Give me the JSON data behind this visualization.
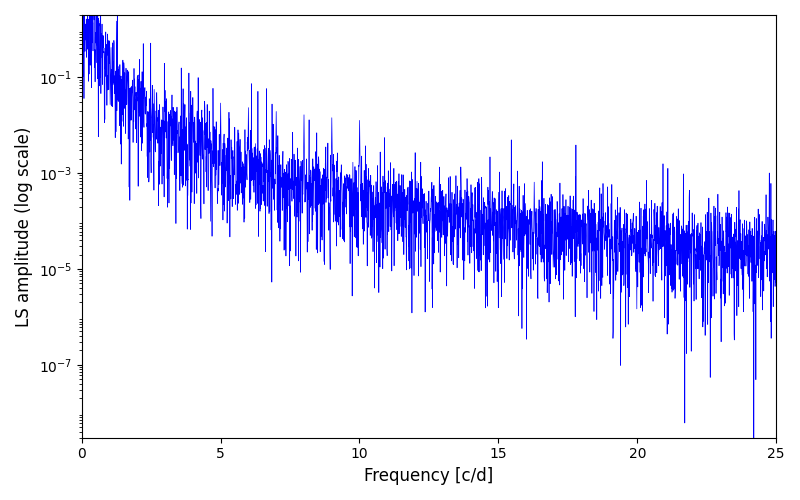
{
  "title": "",
  "xlabel": "Frequency [c/d]",
  "ylabel": "LS amplitude (log scale)",
  "xlim": [
    0,
    25
  ],
  "ylim": [
    3e-09,
    2.0
  ],
  "yscale": "log",
  "line_color": "#0000ff",
  "line_width": 0.5,
  "background_color": "#ffffff",
  "figsize": [
    8.0,
    5.0
  ],
  "dpi": 100,
  "n_points": 3000,
  "freq_max": 25.0,
  "seed": 42,
  "peak_amplitude": 0.25,
  "yticks": [
    1e-07,
    1e-05,
    0.001,
    0.1
  ],
  "xticks": [
    0,
    5,
    10,
    15,
    20,
    25
  ]
}
